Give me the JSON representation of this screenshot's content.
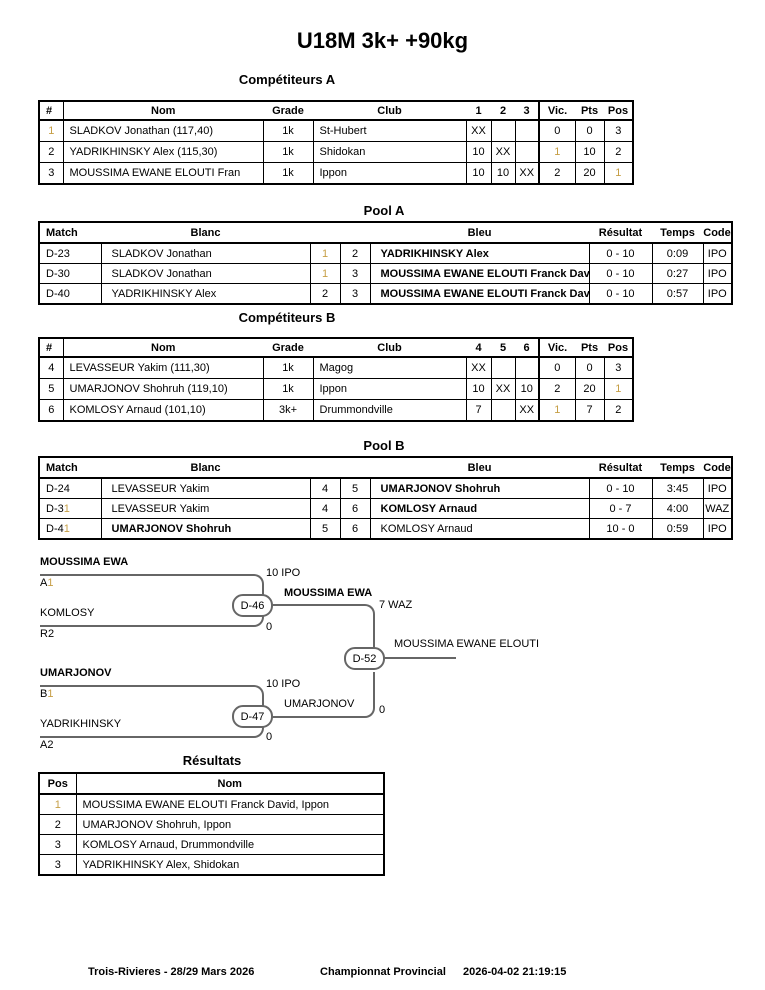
{
  "title": "U18M 3k+ +90kg",
  "colors": {
    "gold_one": "#C69E45",
    "bracket_line": "#666666",
    "table_border": "#000000"
  },
  "competiteurs_a": {
    "heading": "Compétiteurs A",
    "headers": [
      "#",
      "Nom",
      "Grade",
      "Club",
      "1",
      "2",
      "3",
      "Vic.",
      "Pts",
      "Pos"
    ],
    "rows": [
      [
        "1",
        "SLADKOV Jonathan (117,40)",
        "1k",
        "St-Hubert",
        "XX",
        "",
        "",
        "0",
        "0",
        "3"
      ],
      [
        "2",
        "YADRIKHINSKY Alex (115,30)",
        "1k",
        "Shidokan",
        "10",
        "XX",
        "",
        "1",
        "10",
        "2"
      ],
      [
        "3",
        "MOUSSIMA EWANE ELOUTI Fran",
        "1k",
        "Ippon",
        "10",
        "10",
        "XX",
        "2",
        "20",
        "1"
      ]
    ]
  },
  "pool_a": {
    "heading": "Pool A",
    "headers": [
      "Match",
      "Blanc",
      "",
      "",
      "Bleu",
      "Résultat",
      "Temps",
      "Code"
    ],
    "rows": [
      {
        "match": "D-23",
        "blanc": "SLADKOV Jonathan",
        "blanc_bold": false,
        "n1": "1",
        "n2": "2",
        "bleu": "YADRIKHINSKY Alex",
        "bleu_bold": true,
        "resultat": "0 - 10",
        "temps": "0:09",
        "code": "IPO"
      },
      {
        "match": "D-30",
        "blanc": "SLADKOV Jonathan",
        "blanc_bold": false,
        "n1": "1",
        "n2": "3",
        "bleu": "MOUSSIMA EWANE ELOUTI Franck Dav",
        "bleu_bold": true,
        "resultat": "0 - 10",
        "temps": "0:27",
        "code": "IPO"
      },
      {
        "match": "D-40",
        "blanc": "YADRIKHINSKY Alex",
        "blanc_bold": false,
        "n1": "2",
        "n2": "3",
        "bleu": "MOUSSIMA EWANE ELOUTI Franck Dav",
        "bleu_bold": true,
        "resultat": "0 - 10",
        "temps": "0:57",
        "code": "IPO"
      }
    ]
  },
  "competiteurs_b": {
    "heading": "Compétiteurs B",
    "headers": [
      "#",
      "Nom",
      "Grade",
      "Club",
      "4",
      "5",
      "6",
      "Vic.",
      "Pts",
      "Pos"
    ],
    "rows": [
      [
        "4",
        "LEVASSEUR Yakim (111,30)",
        "1k",
        "Magog",
        "XX",
        "",
        "",
        "0",
        "0",
        "3"
      ],
      [
        "5",
        "UMARJONOV Shohruh (119,10)",
        "1k",
        "Ippon",
        "10",
        "XX",
        "10",
        "2",
        "20",
        "1"
      ],
      [
        "6",
        "KOMLOSY Arnaud (101,10)",
        "3k+",
        "Drummondville",
        "7",
        "",
        "XX",
        "1",
        "7",
        "2"
      ]
    ]
  },
  "pool_b": {
    "heading": "Pool B",
    "headers": [
      "Match",
      "Blanc",
      "",
      "",
      "Bleu",
      "Résultat",
      "Temps",
      "Code"
    ],
    "rows": [
      {
        "match": "D-24",
        "blanc": "LEVASSEUR Yakim",
        "blanc_bold": false,
        "n1": "4",
        "n2": "5",
        "bleu": "UMARJONOV Shohruh",
        "bleu_bold": true,
        "resultat": "0 - 10",
        "temps": "3:45",
        "code": "IPO"
      },
      {
        "match": "D-31",
        "blanc": "LEVASSEUR Yakim",
        "blanc_bold": false,
        "n1": "4",
        "n2": "6",
        "bleu": "KOMLOSY Arnaud",
        "bleu_bold": true,
        "resultat": "0 - 7",
        "temps": "4:00",
        "code": "WAZ"
      },
      {
        "match": "D-41",
        "blanc": "UMARJONOV Shohruh",
        "blanc_bold": true,
        "n1": "5",
        "n2": "6",
        "bleu": "KOMLOSY Arnaud",
        "bleu_bold": false,
        "resultat": "10 - 0",
        "temps": "0:59",
        "code": "IPO"
      }
    ]
  },
  "bracket": {
    "semifinal_1": {
      "match": "D-46",
      "top_name": "MOUSSIMA EWA",
      "top_seed": "A1",
      "bottom_name": "KOMLOSY",
      "bottom_seed": "R2",
      "top_score": "10 IPO",
      "bottom_score": "0",
      "winner_name": "MOUSSIMA EWA",
      "winner_score": "7 WAZ"
    },
    "semifinal_2": {
      "match": "D-47",
      "top_name": "UMARJONOV",
      "top_seed": "B1",
      "bottom_name": "YADRIKHINSKY",
      "bottom_seed": "A2",
      "top_score": "10 IPO",
      "bottom_score": "0",
      "winner_name": "UMARJONOV",
      "winner_score": "0"
    },
    "final": {
      "match": "D-52",
      "champion": "MOUSSIMA EWANE ELOUTI"
    }
  },
  "resultats": {
    "heading": "Résultats",
    "headers": [
      "Pos",
      "Nom"
    ],
    "rows": [
      [
        "1",
        "MOUSSIMA EWANE ELOUTI Franck David, Ippon"
      ],
      [
        "2",
        "UMARJONOV Shohruh, Ippon"
      ],
      [
        "3",
        "KOMLOSY Arnaud, Drummondville"
      ],
      [
        "3",
        "YADRIKHINSKY Alex, Shidokan"
      ]
    ]
  },
  "footer": {
    "location_date": "Trois-Rivieres - 28/29 Mars 2026",
    "event": "Championnat Provincial",
    "printed": "2026-04-02 21:19:15"
  }
}
